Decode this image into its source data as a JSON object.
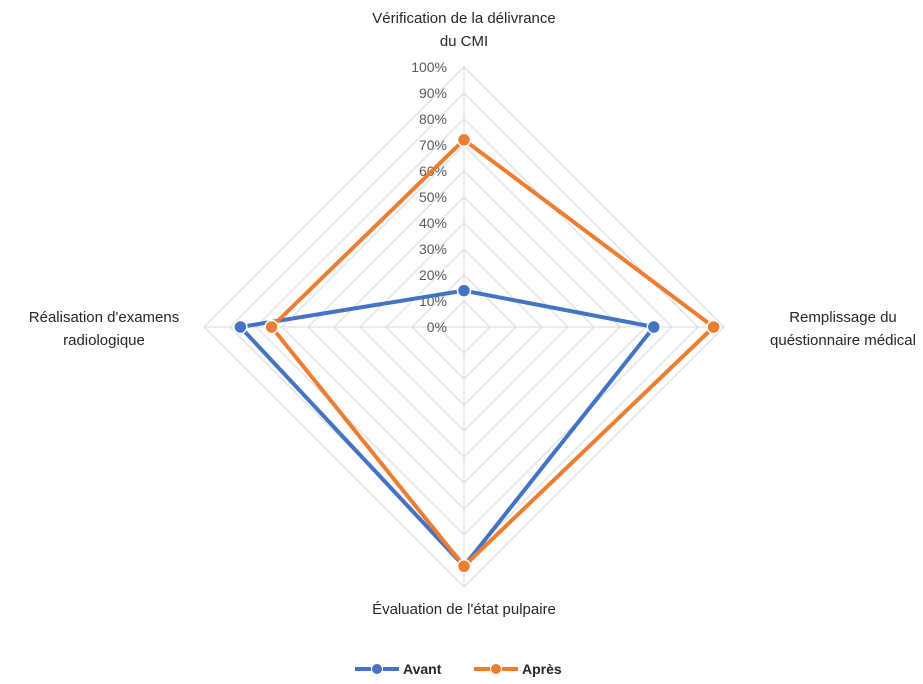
{
  "chart_data": {
    "type": "radar",
    "categories": [
      [
        "Vérification de la délivrance",
        "du CMI"
      ],
      [
        "Remplissage du",
        "quéstionnaire médical"
      ],
      [
        "Évaluation de l'état pulpaire"
      ],
      [
        "Réalisation d'examens",
        "radiologique"
      ]
    ],
    "ticks": [
      "0%",
      "10%",
      "20%",
      "30%",
      "40%",
      "50%",
      "60%",
      "70%",
      "80%",
      "90%",
      "100%"
    ],
    "rlim": [
      0,
      100
    ],
    "grid": true,
    "legend_position": "bottom",
    "series": [
      {
        "name": "Avant",
        "values": [
          14,
          73,
          92,
          86
        ],
        "color": "#4472C4"
      },
      {
        "name": "Après",
        "values": [
          72,
          96,
          92,
          74
        ],
        "color": "#ED7D31"
      }
    ]
  }
}
